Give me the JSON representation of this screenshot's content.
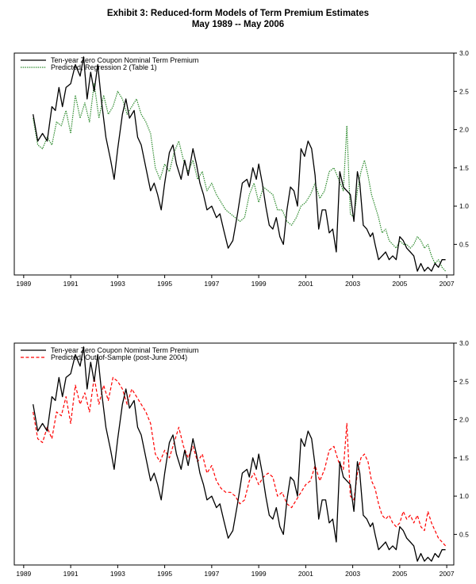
{
  "title": "Exhibit 3: Reduced-form Models of Term Premium Estimates",
  "subtitle": "May 1989 -- May 2006",
  "chart_data": [
    {
      "type": "line",
      "xlim": [
        1988.6,
        2007.3
      ],
      "ylim": [
        0.1,
        3.0
      ],
      "x_ticks": [
        "1989",
        "1991",
        "1993",
        "1995",
        "1997",
        "1999",
        "2001",
        "2003",
        "2005",
        "2007"
      ],
      "y_ticks": [
        "0.5",
        "1.0",
        "1.5",
        "2.0",
        "2.5",
        "3.0"
      ],
      "legend_position": "top-left",
      "series": [
        {
          "name": "Ten-year Zero Coupon Nominal Term Premium",
          "color": "#000000",
          "style": "solid",
          "x": [
            1989.4,
            1989.6,
            1989.8,
            1990.0,
            1990.2,
            1990.35,
            1990.5,
            1990.65,
            1990.8,
            1991.0,
            1991.2,
            1991.4,
            1991.55,
            1991.7,
            1991.85,
            1992.0,
            1992.15,
            1992.3,
            1992.5,
            1992.7,
            1992.85,
            1993.0,
            1993.2,
            1993.35,
            1993.5,
            1993.7,
            1993.85,
            1994.0,
            1994.2,
            1994.4,
            1994.55,
            1994.7,
            1994.85,
            1995.0,
            1995.2,
            1995.35,
            1995.5,
            1995.7,
            1995.85,
            1996.0,
            1996.2,
            1996.35,
            1996.5,
            1996.65,
            1996.8,
            1997.0,
            1997.2,
            1997.35,
            1997.5,
            1997.7,
            1997.9,
            1998.1,
            1998.3,
            1998.5,
            1998.6,
            1998.75,
            1998.9,
            1999.0,
            1999.15,
            1999.3,
            1999.45,
            1999.6,
            1999.75,
            1999.9,
            2000.05,
            2000.2,
            2000.35,
            2000.5,
            2000.65,
            2000.8,
            2000.95,
            2001.1,
            2001.25,
            2001.4,
            2001.55,
            2001.7,
            2001.85,
            2002.0,
            2002.15,
            2002.3,
            2002.45,
            2002.6,
            2002.75,
            2002.9,
            2003.05,
            2003.2,
            2003.3,
            2003.45,
            2003.6,
            2003.75,
            2003.85,
            2003.95,
            2004.1,
            2004.25,
            2004.4,
            2004.55,
            2004.7,
            2004.85,
            2005.0,
            2005.15,
            2005.3,
            2005.45,
            2005.6,
            2005.75,
            2005.9,
            2006.05,
            2006.2,
            2006.35,
            2006.5,
            2006.65,
            2006.8,
            2006.95
          ],
          "y": [
            2.2,
            1.85,
            1.95,
            1.85,
            2.3,
            2.25,
            2.55,
            2.3,
            2.55,
            2.6,
            2.85,
            2.7,
            2.95,
            2.4,
            2.75,
            2.5,
            2.85,
            2.4,
            1.9,
            1.6,
            1.35,
            1.75,
            2.2,
            2.4,
            2.15,
            2.25,
            1.9,
            1.8,
            1.5,
            1.2,
            1.3,
            1.15,
            0.95,
            1.3,
            1.7,
            1.8,
            1.55,
            1.35,
            1.6,
            1.4,
            1.75,
            1.55,
            1.3,
            1.15,
            0.95,
            1.0,
            0.85,
            0.9,
            0.7,
            0.45,
            0.55,
            0.9,
            1.3,
            1.35,
            1.25,
            1.5,
            1.35,
            1.55,
            1.3,
            1.0,
            0.75,
            0.7,
            0.85,
            0.6,
            0.5,
            0.95,
            1.25,
            1.2,
            1.0,
            1.75,
            1.65,
            1.85,
            1.75,
            1.4,
            0.7,
            0.95,
            0.95,
            0.65,
            0.7,
            0.4,
            1.45,
            1.25,
            1.2,
            1.15,
            0.8,
            1.45,
            1.3,
            0.75,
            0.7,
            0.6,
            0.65,
            0.5,
            0.3,
            0.35,
            0.4,
            0.3,
            0.35,
            0.3,
            0.6,
            0.55,
            0.45,
            0.4,
            0.35,
            0.15,
            0.25,
            0.15,
            0.2,
            0.15,
            0.25,
            0.2,
            0.3,
            0.3
          ]
        },
        {
          "name": "Predicted, Regression 2 (Table 1)",
          "color": "#2e8b2e",
          "style": "dotted",
          "x": [
            1989.4,
            1989.6,
            1989.8,
            1990.0,
            1990.2,
            1990.4,
            1990.6,
            1990.8,
            1991.0,
            1991.2,
            1991.4,
            1991.6,
            1991.8,
            1992.0,
            1992.2,
            1992.4,
            1992.6,
            1992.8,
            1993.0,
            1993.2,
            1993.4,
            1993.6,
            1993.8,
            1994.0,
            1994.2,
            1994.4,
            1994.6,
            1994.8,
            1995.0,
            1995.2,
            1995.4,
            1995.6,
            1995.8,
            1996.0,
            1996.2,
            1996.4,
            1996.6,
            1996.8,
            1997.0,
            1997.2,
            1997.4,
            1997.6,
            1997.8,
            1998.0,
            1998.2,
            1998.4,
            1998.6,
            1998.8,
            1999.0,
            1999.2,
            1999.4,
            1999.6,
            1999.8,
            2000.0,
            2000.2,
            2000.4,
            2000.6,
            2000.8,
            2001.0,
            2001.2,
            2001.4,
            2001.6,
            2001.8,
            2002.0,
            2002.2,
            2002.4,
            2002.6,
            2002.75,
            2002.9,
            2003.05,
            2003.2,
            2003.35,
            2003.5,
            2003.65,
            2003.8,
            2003.95,
            2004.1,
            2004.25,
            2004.4,
            2004.55,
            2004.7,
            2004.85,
            2005.0,
            2005.15,
            2005.3,
            2005.45,
            2005.6,
            2005.75,
            2005.9,
            2006.05,
            2006.2,
            2006.35,
            2006.5,
            2006.65,
            2006.8,
            2006.95
          ],
          "y": [
            2.15,
            1.8,
            1.75,
            1.9,
            1.8,
            2.1,
            2.05,
            2.25,
            1.95,
            2.45,
            2.15,
            2.35,
            2.1,
            2.6,
            2.15,
            2.45,
            2.2,
            2.3,
            2.5,
            2.4,
            2.2,
            2.3,
            2.4,
            2.2,
            2.1,
            1.95,
            1.5,
            1.35,
            1.55,
            1.45,
            1.7,
            1.85,
            1.6,
            1.45,
            1.6,
            1.35,
            1.45,
            1.2,
            1.3,
            1.15,
            1.05,
            0.95,
            0.9,
            0.85,
            0.8,
            0.85,
            1.15,
            1.3,
            1.05,
            1.25,
            1.2,
            1.15,
            0.95,
            0.95,
            0.8,
            0.75,
            0.85,
            1.0,
            1.05,
            1.15,
            1.3,
            1.1,
            1.2,
            1.45,
            1.5,
            1.35,
            1.2,
            2.05,
            0.9,
            0.85,
            1.2,
            1.45,
            1.6,
            1.4,
            1.15,
            1.0,
            0.85,
            0.65,
            0.7,
            0.55,
            0.5,
            0.45,
            0.55,
            0.5,
            0.5,
            0.45,
            0.5,
            0.6,
            0.55,
            0.45,
            0.5,
            0.35,
            0.25,
            0.3,
            0.2,
            0.15
          ]
        }
      ]
    },
    {
      "type": "line",
      "xlim": [
        1988.6,
        2007.3
      ],
      "ylim": [
        0.1,
        3.0
      ],
      "x_ticks": [
        "1989",
        "1991",
        "1993",
        "1995",
        "1997",
        "1999",
        "2001",
        "2003",
        "2005",
        "2007"
      ],
      "y_ticks": [
        "0.5",
        "1.0",
        "1.5",
        "2.0",
        "2.5",
        "3.0"
      ],
      "legend_position": "top-left",
      "series": [
        {
          "name": "Ten-year Zero Coupon Nominal Term Premium",
          "color": "#000000",
          "style": "solid",
          "x": [
            1989.4,
            1989.6,
            1989.8,
            1990.0,
            1990.2,
            1990.35,
            1990.5,
            1990.65,
            1990.8,
            1991.0,
            1991.2,
            1991.4,
            1991.55,
            1991.7,
            1991.85,
            1992.0,
            1992.15,
            1992.3,
            1992.5,
            1992.7,
            1992.85,
            1993.0,
            1993.2,
            1993.35,
            1993.5,
            1993.7,
            1993.85,
            1994.0,
            1994.2,
            1994.4,
            1994.55,
            1994.7,
            1994.85,
            1995.0,
            1995.2,
            1995.35,
            1995.5,
            1995.7,
            1995.85,
            1996.0,
            1996.2,
            1996.35,
            1996.5,
            1996.65,
            1996.8,
            1997.0,
            1997.2,
            1997.35,
            1997.5,
            1997.7,
            1997.9,
            1998.1,
            1998.3,
            1998.5,
            1998.6,
            1998.75,
            1998.9,
            1999.0,
            1999.15,
            1999.3,
            1999.45,
            1999.6,
            1999.75,
            1999.9,
            2000.05,
            2000.2,
            2000.35,
            2000.5,
            2000.65,
            2000.8,
            2000.95,
            2001.1,
            2001.25,
            2001.4,
            2001.55,
            2001.7,
            2001.85,
            2002.0,
            2002.15,
            2002.3,
            2002.45,
            2002.6,
            2002.75,
            2002.9,
            2003.05,
            2003.2,
            2003.3,
            2003.45,
            2003.6,
            2003.75,
            2003.85,
            2003.95,
            2004.1,
            2004.25,
            2004.4,
            2004.55,
            2004.7,
            2004.85,
            2005.0,
            2005.15,
            2005.3,
            2005.45,
            2005.6,
            2005.75,
            2005.9,
            2006.05,
            2006.2,
            2006.35,
            2006.5,
            2006.65,
            2006.8,
            2006.95
          ],
          "y": [
            2.2,
            1.85,
            1.95,
            1.85,
            2.3,
            2.25,
            2.55,
            2.3,
            2.55,
            2.6,
            2.85,
            2.7,
            2.95,
            2.4,
            2.75,
            2.5,
            2.85,
            2.4,
            1.9,
            1.6,
            1.35,
            1.75,
            2.2,
            2.4,
            2.15,
            2.25,
            1.9,
            1.8,
            1.5,
            1.2,
            1.3,
            1.15,
            0.95,
            1.3,
            1.7,
            1.8,
            1.55,
            1.35,
            1.6,
            1.4,
            1.75,
            1.55,
            1.3,
            1.15,
            0.95,
            1.0,
            0.85,
            0.9,
            0.7,
            0.45,
            0.55,
            0.9,
            1.3,
            1.35,
            1.25,
            1.5,
            1.35,
            1.55,
            1.3,
            1.0,
            0.75,
            0.7,
            0.85,
            0.6,
            0.5,
            0.95,
            1.25,
            1.2,
            1.0,
            1.75,
            1.65,
            1.85,
            1.75,
            1.4,
            0.7,
            0.95,
            0.95,
            0.65,
            0.7,
            0.4,
            1.45,
            1.25,
            1.2,
            1.15,
            0.8,
            1.45,
            1.3,
            0.75,
            0.7,
            0.6,
            0.65,
            0.5,
            0.3,
            0.35,
            0.4,
            0.3,
            0.35,
            0.3,
            0.6,
            0.55,
            0.45,
            0.4,
            0.35,
            0.15,
            0.25,
            0.15,
            0.2,
            0.15,
            0.25,
            0.2,
            0.3,
            0.3
          ]
        },
        {
          "name": "Predicted, Out-of-Sample (post-June 2004)",
          "color": "#ff0000",
          "style": "dashed",
          "x": [
            1989.4,
            1989.6,
            1989.8,
            1990.0,
            1990.2,
            1990.4,
            1990.6,
            1990.8,
            1991.0,
            1991.2,
            1991.4,
            1991.6,
            1991.8,
            1992.0,
            1992.2,
            1992.4,
            1992.6,
            1992.8,
            1993.0,
            1993.2,
            1993.4,
            1993.6,
            1993.8,
            1994.0,
            1994.2,
            1994.4,
            1994.6,
            1994.8,
            1995.0,
            1995.2,
            1995.4,
            1995.6,
            1995.8,
            1996.0,
            1996.2,
            1996.4,
            1996.6,
            1996.8,
            1997.0,
            1997.2,
            1997.4,
            1997.6,
            1997.8,
            1998.0,
            1998.2,
            1998.4,
            1998.6,
            1998.8,
            1999.0,
            1999.2,
            1999.4,
            1999.6,
            1999.8,
            2000.0,
            2000.2,
            2000.4,
            2000.6,
            2000.8,
            2001.0,
            2001.2,
            2001.4,
            2001.6,
            2001.8,
            2002.0,
            2002.2,
            2002.4,
            2002.6,
            2002.75,
            2002.9,
            2003.05,
            2003.2,
            2003.35,
            2003.5,
            2003.65,
            2003.8,
            2003.95,
            2004.1,
            2004.25,
            2004.4,
            2004.55,
            2004.7,
            2004.85,
            2005.0,
            2005.15,
            2005.3,
            2005.45,
            2005.6,
            2005.75,
            2005.9,
            2006.05,
            2006.2,
            2006.35,
            2006.5,
            2006.65,
            2006.8,
            2006.95
          ],
          "y": [
            2.1,
            1.75,
            1.7,
            1.9,
            1.75,
            2.1,
            2.05,
            2.3,
            1.95,
            2.45,
            2.2,
            2.35,
            2.1,
            2.55,
            2.2,
            2.45,
            2.25,
            2.55,
            2.5,
            2.4,
            2.2,
            2.4,
            2.3,
            2.2,
            2.1,
            1.95,
            1.55,
            1.45,
            1.6,
            1.5,
            1.7,
            1.9,
            1.65,
            1.5,
            1.65,
            1.45,
            1.55,
            1.3,
            1.4,
            1.2,
            1.1,
            1.05,
            1.05,
            1.0,
            0.9,
            0.95,
            1.2,
            1.3,
            1.15,
            1.25,
            1.3,
            1.25,
            1.0,
            1.05,
            0.9,
            0.85,
            0.95,
            1.05,
            1.15,
            1.2,
            1.4,
            1.2,
            1.35,
            1.6,
            1.65,
            1.45,
            1.35,
            1.95,
            1.0,
            0.95,
            1.3,
            1.5,
            1.55,
            1.45,
            1.2,
            1.1,
            0.9,
            0.75,
            0.7,
            0.75,
            0.65,
            0.6,
            0.65,
            0.8,
            0.7,
            0.75,
            0.65,
            0.75,
            0.6,
            0.55,
            0.8,
            0.65,
            0.55,
            0.45,
            0.4,
            0.35
          ]
        }
      ]
    }
  ]
}
